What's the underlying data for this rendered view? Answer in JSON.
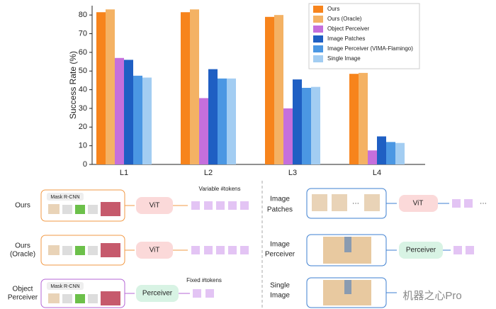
{
  "chart_data": {
    "type": "bar",
    "y_label": "Success Rate (%)",
    "categories": [
      "L1",
      "L2",
      "L3",
      "L4"
    ],
    "series": [
      {
        "name": "Ours",
        "color": "#f7841c",
        "values": [
          81.5,
          81.5,
          79,
          48.5
        ]
      },
      {
        "name": "Ours (Oracle)",
        "color": "#f4b264",
        "values": [
          83,
          83,
          80,
          49
        ]
      },
      {
        "name": "Object Perceiver",
        "color": "#c56fdc",
        "values": [
          57,
          35.5,
          30,
          7.5
        ]
      },
      {
        "name": "Image Patches",
        "color": "#1f5fc3",
        "values": [
          56,
          51,
          45.5,
          15
        ]
      },
      {
        "name": "Image Perceiver (VIMA-Flamingo)",
        "color": "#4b97e3",
        "values": [
          47.5,
          46,
          41,
          12
        ]
      },
      {
        "name": "Single Image",
        "color": "#a3cdf2",
        "values": [
          46.5,
          46,
          41.5,
          11.5
        ]
      }
    ],
    "ylim": [
      0,
      85
    ],
    "yticks": [
      0,
      10,
      20,
      30,
      40,
      50,
      60,
      70,
      80
    ],
    "legend": "upper right"
  },
  "diagram": {
    "ours": [
      "Ours"
    ],
    "ours_oracle": [
      "Ours",
      "(Oracle)"
    ],
    "object_perceiver": [
      "Object",
      "Perceiver"
    ],
    "image_patches": [
      "Image",
      "Patches"
    ],
    "image_perceiver": [
      "Image",
      "Perceiver"
    ],
    "single_image": [
      "Single",
      "Image"
    ],
    "mask_rcnn": "Mask R-CNN",
    "vit": "ViT",
    "perceiver": "Perceiver",
    "variable_tokens": "Variable #tokens",
    "fixed_tokens": "Fixed #tokens",
    "ellipsis": "···"
  },
  "watermark": "机器之心Pro"
}
